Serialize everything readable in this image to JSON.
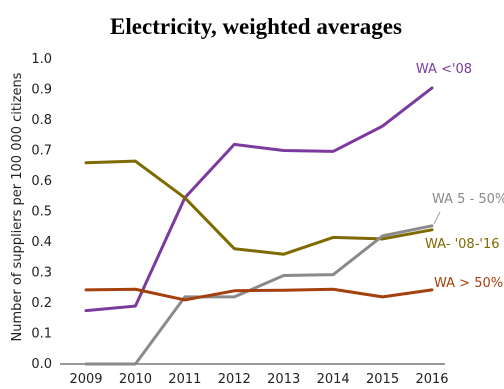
{
  "chart_data": {
    "type": "line",
    "title": "Electricity, weighted averages",
    "ylabel": "Number of suppliers per 100 000 citizens",
    "xlabel": "",
    "categories": [
      "2009",
      "2010",
      "2011",
      "2012",
      "2013",
      "2014",
      "2015",
      "2016"
    ],
    "ylim": [
      0,
      1.0
    ],
    "yticks": [
      "0.0",
      "0.1",
      "0.2",
      "0.3",
      "0.4",
      "0.5",
      "0.6",
      "0.7",
      "0.8",
      "0.9",
      "1.0"
    ],
    "grid": false,
    "series": [
      {
        "name": "WA <'08",
        "color": "#7b3a9e",
        "values": [
          0.175,
          0.19,
          0.545,
          0.72,
          0.7,
          0.697,
          0.78,
          0.905
        ]
      },
      {
        "name": "WA- '08-'16",
        "color": "#7f6a00",
        "values": [
          0.66,
          0.665,
          0.545,
          0.378,
          0.36,
          0.415,
          0.41,
          0.44
        ]
      },
      {
        "name": "WA 5 - 50%",
        "color": "#8a8a8a",
        "values": [
          0.0,
          0.0,
          0.22,
          0.22,
          0.29,
          0.293,
          0.42,
          0.453
        ]
      },
      {
        "name": "WA > 50%",
        "color": "#a4400c",
        "values": [
          0.243,
          0.245,
          0.21,
          0.24,
          0.242,
          0.245,
          0.22,
          0.243
        ]
      }
    ]
  }
}
